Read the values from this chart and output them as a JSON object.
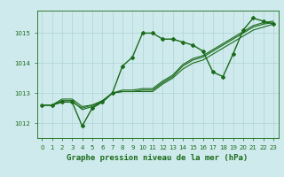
{
  "title": "Graphe pression niveau de la mer (hPa)",
  "xlabel_hours": [
    0,
    1,
    2,
    3,
    4,
    5,
    6,
    7,
    8,
    9,
    10,
    11,
    12,
    13,
    14,
    15,
    16,
    17,
    18,
    19,
    20,
    21,
    22,
    23
  ],
  "series": [
    {
      "x": [
        0,
        1,
        2,
        3,
        4,
        5,
        6,
        7,
        8,
        9,
        10,
        11,
        12,
        13,
        14,
        15,
        16,
        17,
        18,
        19,
        20,
        21,
        22,
        23
      ],
      "y": [
        1012.6,
        1012.6,
        1012.7,
        1012.7,
        1011.9,
        1012.5,
        1012.7,
        1013.0,
        1013.9,
        1014.2,
        1015.0,
        1015.0,
        1014.8,
        1014.8,
        1014.7,
        1014.6,
        1014.4,
        1013.7,
        1013.55,
        1014.3,
        1015.1,
        1015.5,
        1015.4,
        1015.3
      ],
      "color": "#1a6b1a",
      "linewidth": 1.0,
      "marker": "D",
      "markersize": 2.0
    },
    {
      "x": [
        0,
        1,
        2,
        3,
        4,
        5,
        6,
        7,
        8,
        9,
        10,
        11,
        12,
        13,
        14,
        15,
        16,
        17,
        18,
        19,
        20,
        21,
        22,
        23
      ],
      "y": [
        1012.6,
        1012.6,
        1012.8,
        1012.8,
        1012.55,
        1012.6,
        1012.75,
        1013.0,
        1013.05,
        1013.05,
        1013.05,
        1013.05,
        1013.3,
        1013.5,
        1013.8,
        1014.0,
        1014.1,
        1014.3,
        1014.5,
        1014.7,
        1014.9,
        1015.1,
        1015.2,
        1015.3
      ],
      "color": "#1a6b1a",
      "linewidth": 0.8,
      "marker": null,
      "markersize": 0
    },
    {
      "x": [
        0,
        1,
        2,
        3,
        4,
        5,
        6,
        7,
        8,
        9,
        10,
        11,
        12,
        13,
        14,
        15,
        16,
        17,
        18,
        19,
        20,
        21,
        22,
        23
      ],
      "y": [
        1012.6,
        1012.6,
        1012.75,
        1012.75,
        1012.45,
        1012.55,
        1012.7,
        1013.0,
        1013.05,
        1013.05,
        1013.1,
        1013.1,
        1013.35,
        1013.55,
        1013.9,
        1014.1,
        1014.2,
        1014.4,
        1014.6,
        1014.8,
        1015.0,
        1015.2,
        1015.3,
        1015.35
      ],
      "color": "#1a6b1a",
      "linewidth": 0.8,
      "marker": null,
      "markersize": 0
    },
    {
      "x": [
        0,
        1,
        2,
        3,
        4,
        5,
        6,
        7,
        8,
        9,
        10,
        11,
        12,
        13,
        14,
        15,
        16,
        17,
        18,
        19,
        20,
        21,
        22,
        23
      ],
      "y": [
        1012.6,
        1012.6,
        1012.7,
        1012.7,
        1012.5,
        1012.6,
        1012.7,
        1013.0,
        1013.1,
        1013.1,
        1013.15,
        1013.15,
        1013.4,
        1013.6,
        1013.95,
        1014.15,
        1014.25,
        1014.45,
        1014.65,
        1014.85,
        1015.05,
        1015.25,
        1015.35,
        1015.4
      ],
      "color": "#1a6b1a",
      "linewidth": 0.8,
      "marker": null,
      "markersize": 0
    }
  ],
  "ylim": [
    1011.5,
    1015.75
  ],
  "yticks": [
    1012,
    1013,
    1014,
    1015
  ],
  "xlim": [
    -0.5,
    23.5
  ],
  "bg_color": "#ceeaec",
  "grid_color": "#aacccc",
  "axis_color": "#1a6b1a",
  "title_color": "#1a6b1a",
  "title_fontsize": 6.5,
  "tick_fontsize": 5.0
}
